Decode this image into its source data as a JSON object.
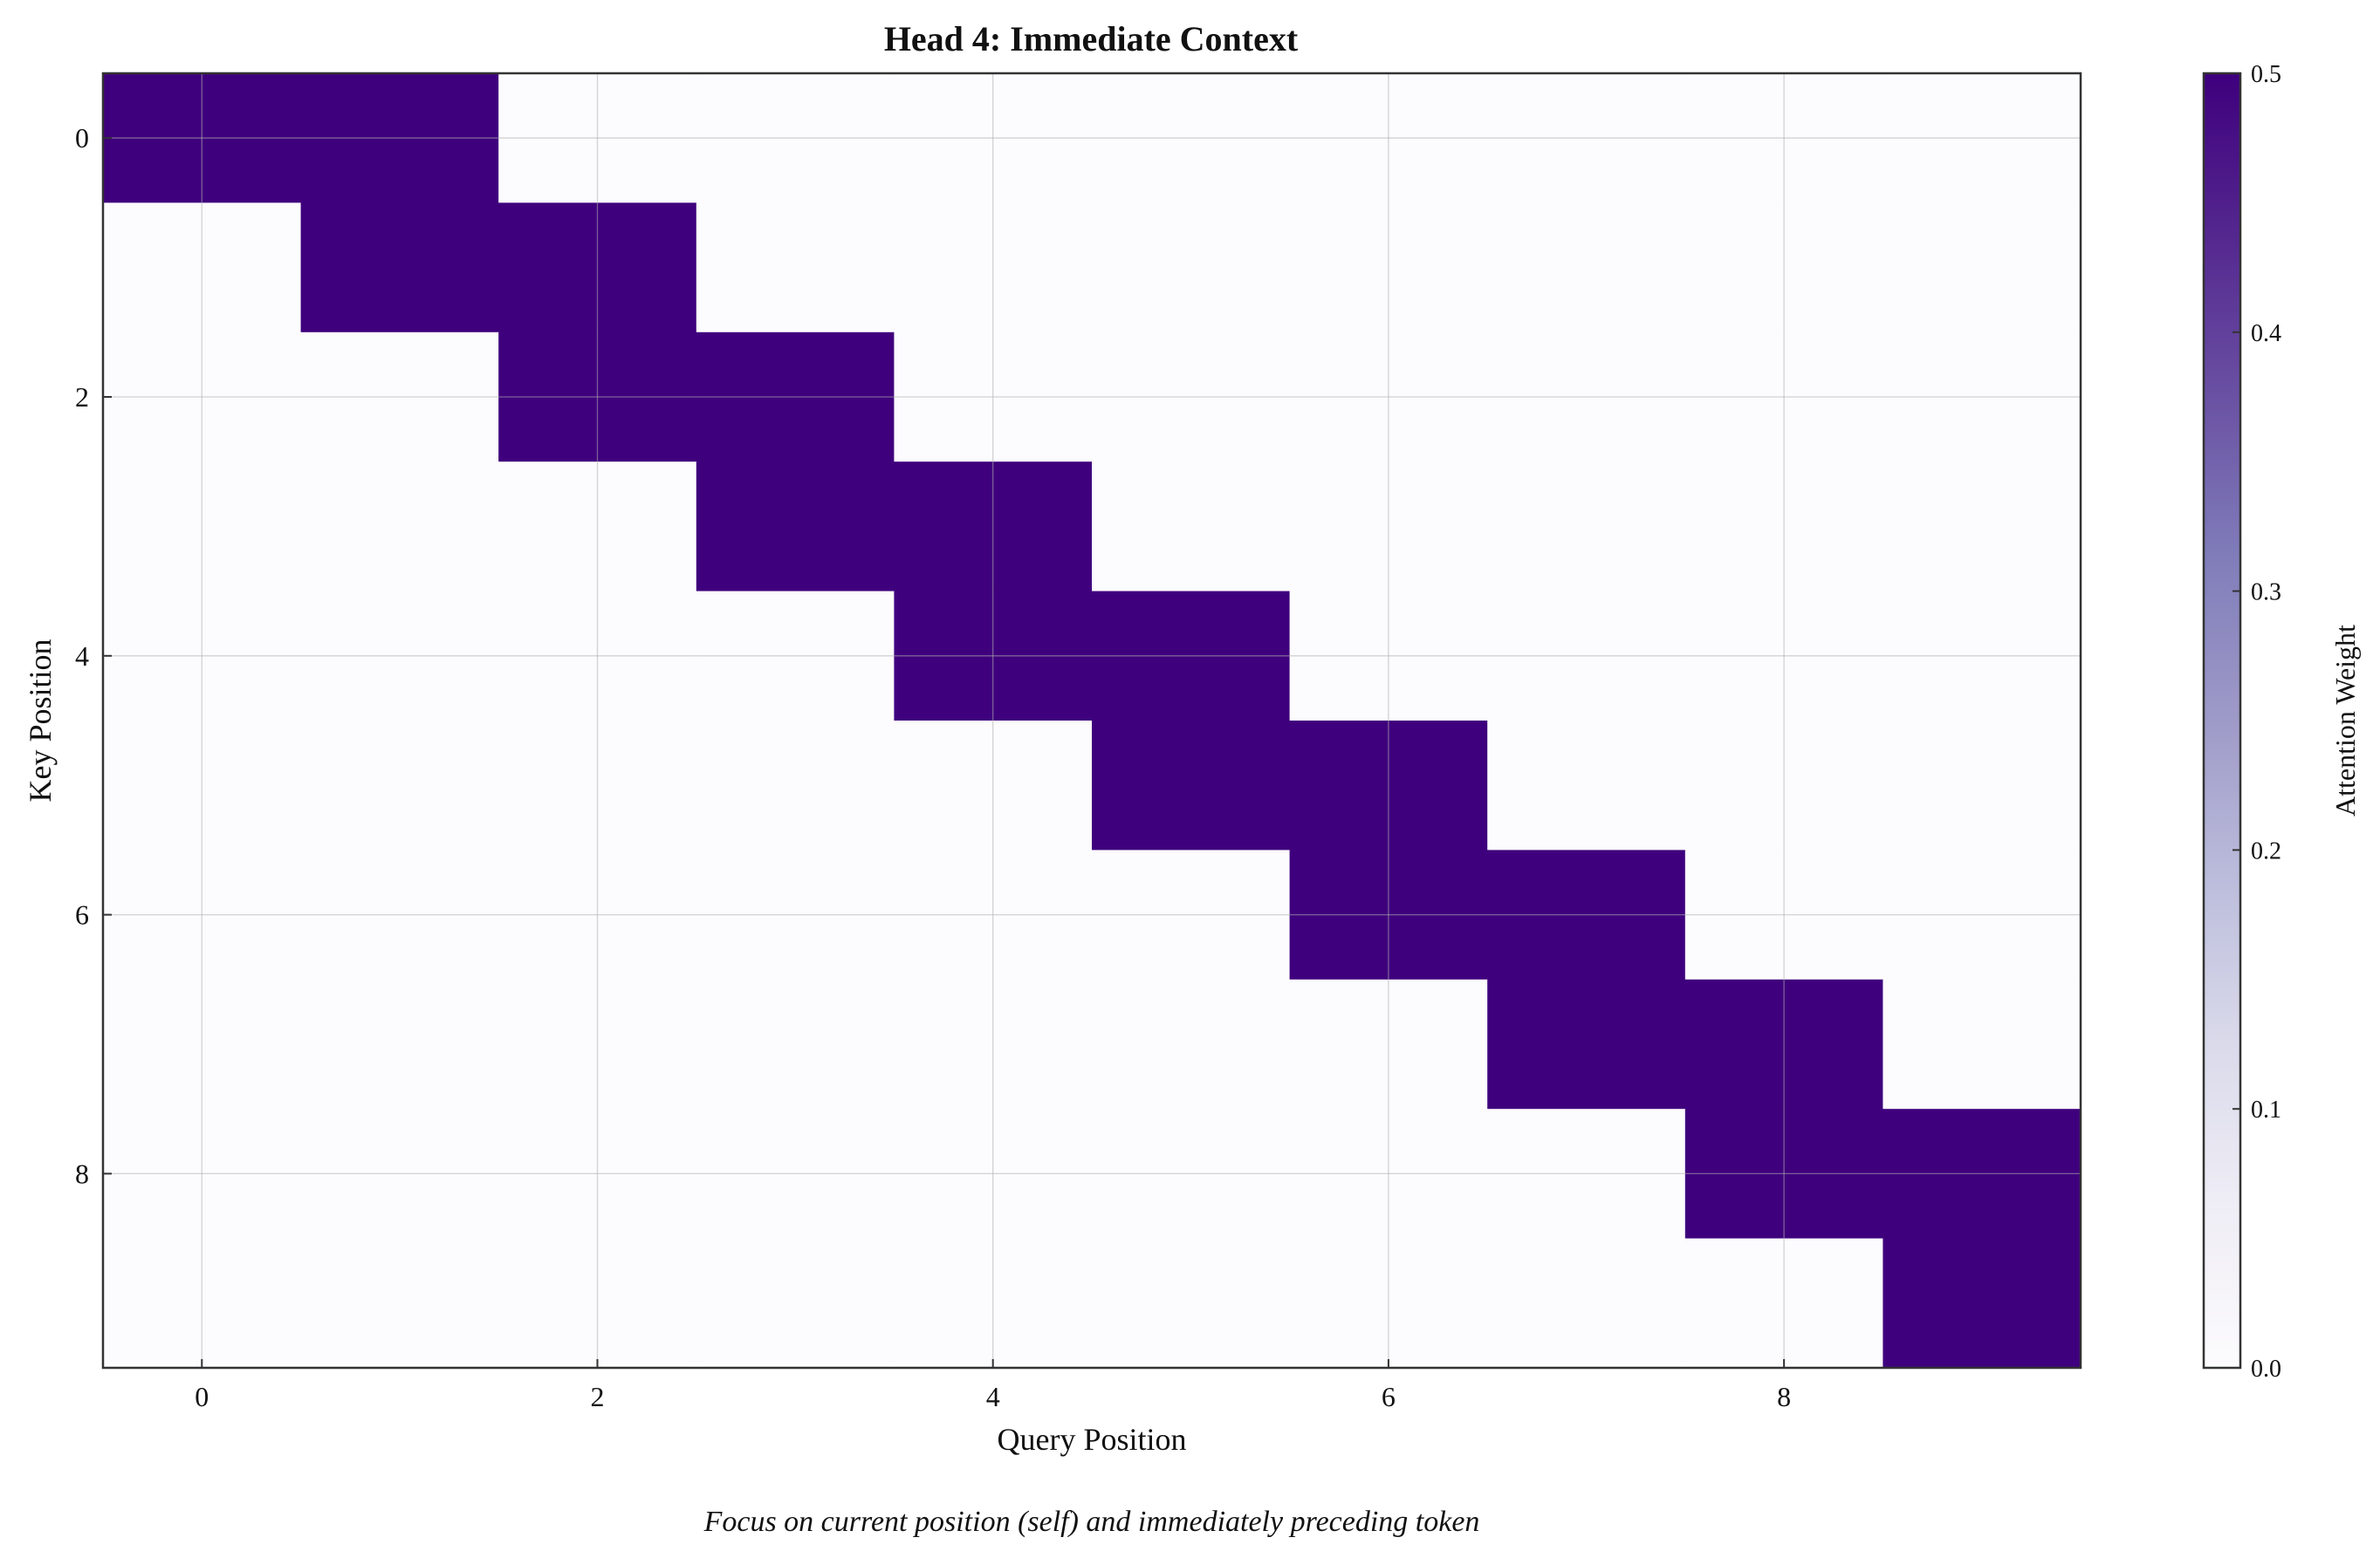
{
  "chart_data": {
    "type": "heatmap",
    "title": "Head 4: Immediate Context",
    "xlabel": "Query Position",
    "ylabel": "Key Position",
    "caption": "Focus on current position (self) and immediately preceding token",
    "rows": 10,
    "cols": 10,
    "x_ticks": [
      "0",
      "2",
      "4",
      "6",
      "8"
    ],
    "x_tick_values": [
      0,
      2,
      4,
      6,
      8
    ],
    "y_ticks": [
      "0",
      "2",
      "4",
      "6",
      "8"
    ],
    "y_tick_values": [
      0,
      2,
      4,
      6,
      8
    ],
    "x_range": [
      -0.5,
      9.5
    ],
    "y_range": [
      -0.5,
      9.5
    ],
    "y_inverted": true,
    "grid": true,
    "matrix": [
      [
        0.5,
        0.5,
        0,
        0,
        0,
        0,
        0,
        0,
        0,
        0
      ],
      [
        0,
        0.5,
        0.5,
        0,
        0,
        0,
        0,
        0,
        0,
        0
      ],
      [
        0,
        0,
        0.5,
        0.5,
        0,
        0,
        0,
        0,
        0,
        0
      ],
      [
        0,
        0,
        0,
        0.5,
        0.5,
        0,
        0,
        0,
        0,
        0
      ],
      [
        0,
        0,
        0,
        0,
        0.5,
        0.5,
        0,
        0,
        0,
        0
      ],
      [
        0,
        0,
        0,
        0,
        0,
        0.5,
        0.5,
        0,
        0,
        0
      ],
      [
        0,
        0,
        0,
        0,
        0,
        0,
        0.5,
        0.5,
        0,
        0
      ],
      [
        0,
        0,
        0,
        0,
        0,
        0,
        0,
        0.5,
        0.5,
        0
      ],
      [
        0,
        0,
        0,
        0,
        0,
        0,
        0,
        0,
        0.5,
        0.5
      ],
      [
        0,
        0,
        0,
        0,
        0,
        0,
        0,
        0,
        0,
        0.5
      ]
    ],
    "colorbar": {
      "label": "Attention Weight",
      "min": 0.0,
      "max": 0.5,
      "ticks": [
        "0.0",
        "0.1",
        "0.2",
        "0.3",
        "0.4",
        "0.5"
      ],
      "tick_values": [
        0.0,
        0.1,
        0.2,
        0.3,
        0.4,
        0.5
      ]
    },
    "colormap": "Purples",
    "colors": {
      "low": "#fcfbfd",
      "high": "#3f007d",
      "gradient": [
        "#fcfbfd",
        "#efedf5",
        "#dadaeb",
        "#bcbddc",
        "#9e9ac8",
        "#807dba",
        "#6a51a3",
        "#54278f",
        "#3f007d"
      ],
      "grid": "#b0b0b0",
      "frame": "#333333"
    }
  }
}
